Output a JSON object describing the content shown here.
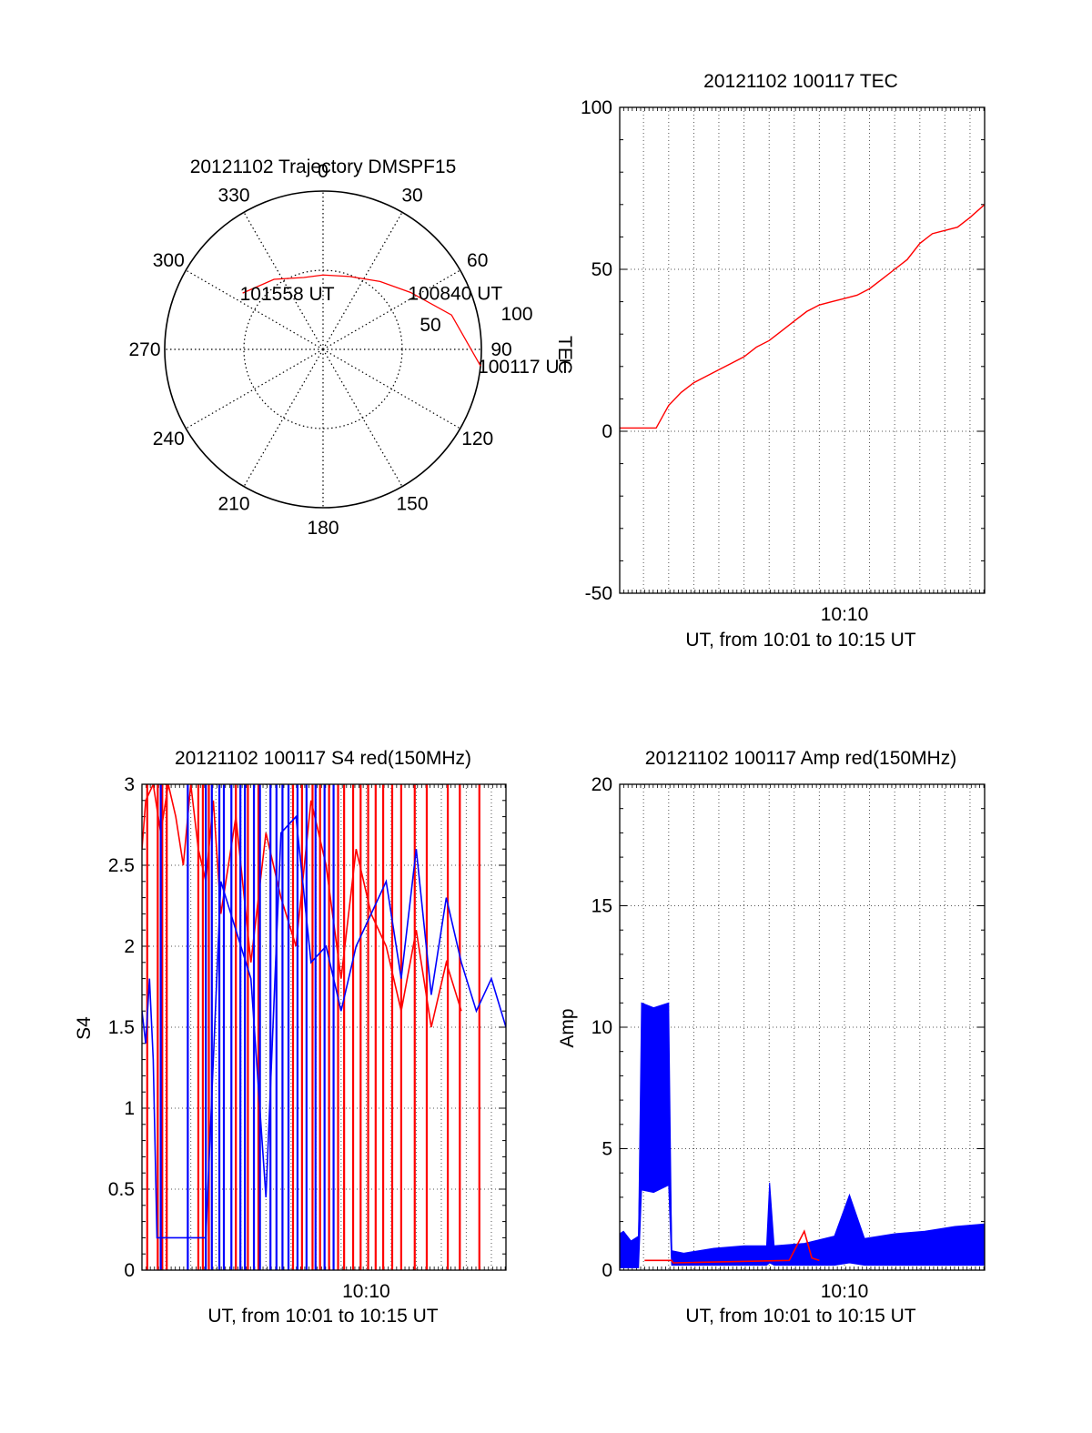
{
  "colors": {
    "primary": "#ff0000",
    "secondary": "#0000ff",
    "axis": "#000000",
    "grid": "#555555"
  },
  "chart_data": [
    {
      "id": "trajectory",
      "type": "polar",
      "title": "20121102 Trajectory DMSPF15",
      "azimuth_labels": [
        "0",
        "30",
        "60",
        "90",
        "120",
        "150",
        "180",
        "210",
        "240",
        "270",
        "300",
        "330"
      ],
      "radial_labels": [
        "50",
        "100"
      ],
      "track": [
        [
          305,
          62
        ],
        [
          325,
          54
        ],
        [
          345,
          47
        ],
        [
          0,
          47
        ],
        [
          20,
          49
        ],
        [
          40,
          56
        ],
        [
          57,
          66
        ],
        [
          75,
          84
        ],
        [
          96,
          100
        ]
      ],
      "annotations": [
        {
          "text": "101558 UT",
          "az": 305,
          "el_index": 0
        },
        {
          "text": "100840 UT",
          "az": 57,
          "el_index": 6
        },
        {
          "text": "100117 UT",
          "az": 96,
          "el_index": 8
        }
      ],
      "extra_labels": [
        "TEC"
      ]
    },
    {
      "id": "tec",
      "type": "line",
      "title": "20121102 100117 TEC",
      "xlabel": "UT, from 10:01 to 10:15 UT",
      "ylabel": "",
      "xlim": [
        10.0175,
        10.2597
      ],
      "ylim": [
        -50,
        100
      ],
      "yticks": [
        -50,
        0,
        50,
        100
      ],
      "xticks": [
        {
          "value": 10.1667,
          "label": "10:10"
        }
      ],
      "series": [
        {
          "color": "#ff0000",
          "x": [
            10.0175,
            10.0333,
            10.0417,
            10.05,
            10.0583,
            10.0667,
            10.075,
            10.0833,
            10.0917,
            10.1,
            10.1083,
            10.1167,
            10.125,
            10.1333,
            10.1417,
            10.15,
            10.1583,
            10.1667,
            10.175,
            10.1833,
            10.1917,
            10.2,
            10.2083,
            10.2167,
            10.225,
            10.2333,
            10.2417,
            10.25,
            10.2597
          ],
          "y": [
            1,
            1,
            1,
            8,
            12,
            15,
            17,
            19,
            21,
            23,
            26,
            28,
            31,
            34,
            37,
            39,
            40,
            41,
            42,
            44,
            47,
            50,
            53,
            58,
            61,
            62,
            63,
            66,
            70
          ]
        }
      ]
    },
    {
      "id": "s4",
      "type": "line",
      "title": "20121102 100117 S4 red(150MHz)",
      "xlabel": "UT, from 10:01 to 10:15 UT",
      "ylabel": "S4",
      "xlim": [
        10.0175,
        10.2597
      ],
      "ylim": [
        0,
        3
      ],
      "yticks": [
        0,
        0.5,
        1,
        1.5,
        2,
        2.5,
        3
      ],
      "xticks": [
        {
          "value": 10.1667,
          "label": "10:10"
        }
      ],
      "series": [
        {
          "color": "#ff0000",
          "x": [
            10.0175,
            10.02,
            10.025,
            10.03,
            10.035,
            10.04,
            10.045,
            10.05,
            10.055,
            10.06,
            10.065,
            10.07,
            10.08,
            10.09,
            10.1,
            10.11,
            10.12,
            10.13,
            10.14,
            10.15,
            10.16,
            10.17,
            10.18,
            10.19,
            10.2,
            10.21,
            10.22,
            10.23
          ],
          "y": [
            2.6,
            2.9,
            3.0,
            2.7,
            3.0,
            2.8,
            2.5,
            3.0,
            2.6,
            2.4,
            2.9,
            2.2,
            2.8,
            1.9,
            2.7,
            2.3,
            2.0,
            2.9,
            2.5,
            1.8,
            2.6,
            2.2,
            2.0,
            1.6,
            2.1,
            1.5,
            1.9,
            1.6
          ],
          "spikes": [
            10.021,
            10.028,
            10.031,
            10.034,
            10.055,
            10.058,
            10.062,
            10.08,
            10.088,
            10.095,
            10.118,
            10.124,
            10.131,
            10.136,
            10.142,
            10.148,
            10.152,
            10.158,
            10.163,
            10.168,
            10.173,
            10.178,
            10.184,
            10.19,
            10.199,
            10.207,
            10.221,
            10.229,
            10.242
          ]
        },
        {
          "color": "#0000ff",
          "x": [
            10.0175,
            10.02,
            10.0225,
            10.025,
            10.0275,
            10.03,
            10.04,
            10.05,
            10.06,
            10.07,
            10.08,
            10.09,
            10.1,
            10.11,
            10.12,
            10.13,
            10.14,
            10.15,
            10.16,
            10.17,
            10.18,
            10.19,
            10.2,
            10.21,
            10.22,
            10.23,
            10.24,
            10.25,
            10.2597
          ],
          "y": [
            1.6,
            1.4,
            1.8,
            1.3,
            0.2,
            0.2,
            0.2,
            0.2,
            0.2,
            2.4,
            2.1,
            1.8,
            0.45,
            2.7,
            2.8,
            1.9,
            2.0,
            1.6,
            2.0,
            2.2,
            2.4,
            1.8,
            2.6,
            1.7,
            2.3,
            1.9,
            1.6,
            1.8,
            1.5
          ],
          "spikes": [
            10.03,
            10.048,
            10.06,
            10.064,
            10.069,
            10.072,
            10.077,
            10.083,
            10.086,
            10.092,
            10.096,
            10.103,
            10.107,
            10.111,
            10.115,
            10.121,
            10.127,
            10.133,
            10.139,
            10.145
          ]
        }
      ]
    },
    {
      "id": "amp",
      "type": "line",
      "title": "20121102 100117 Amp red(150MHz)",
      "xlabel": "UT, from 10:01 to 10:15 UT",
      "ylabel": "Amp",
      "xlim": [
        10.0175,
        10.2597
      ],
      "ylim": [
        0,
        20
      ],
      "yticks": [
        0,
        5,
        10,
        15,
        20
      ],
      "xticks": [
        {
          "value": 10.1667,
          "label": "10:10"
        }
      ],
      "series": [
        {
          "color": "#0000ff",
          "x": [
            10.0175,
            10.02,
            10.025,
            10.03,
            10.032,
            10.04,
            10.05,
            10.052,
            10.06,
            10.08,
            10.1,
            10.115,
            10.117,
            10.12,
            10.14,
            10.16,
            10.17,
            10.18,
            10.2,
            10.22,
            10.24,
            10.2597
          ],
          "y": [
            0.8,
            1.0,
            0.9,
            1.0,
            7.0,
            7.0,
            7.0,
            0.5,
            0.5,
            0.5,
            0.6,
            0.6,
            2.8,
            0.6,
            0.6,
            0.8,
            2.5,
            0.8,
            0.9,
            1.0,
            1.2,
            1.0
          ],
          "band_top": [
            1.5,
            1.6,
            1.2,
            1.4,
            11.0,
            10.8,
            11.0,
            0.8,
            0.7,
            0.9,
            1.0,
            1.0,
            3.6,
            1.0,
            1.1,
            1.4,
            3.1,
            1.3,
            1.5,
            1.6,
            1.8,
            1.9
          ],
          "band_bottom": [
            0.1,
            0.1,
            0.1,
            0.1,
            3.3,
            3.2,
            3.5,
            0.2,
            0.2,
            0.2,
            0.2,
            0.2,
            0.3,
            0.2,
            0.2,
            0.2,
            0.3,
            0.2,
            0.2,
            0.2,
            0.2,
            0.2
          ]
        },
        {
          "color": "#ff0000",
          "x": [
            10.034,
            10.052,
            10.053,
            10.13,
            10.14,
            10.145,
            10.15
          ],
          "y": [
            0.4,
            0.4,
            0.3,
            0.4,
            1.6,
            0.5,
            0.4
          ]
        }
      ]
    }
  ]
}
